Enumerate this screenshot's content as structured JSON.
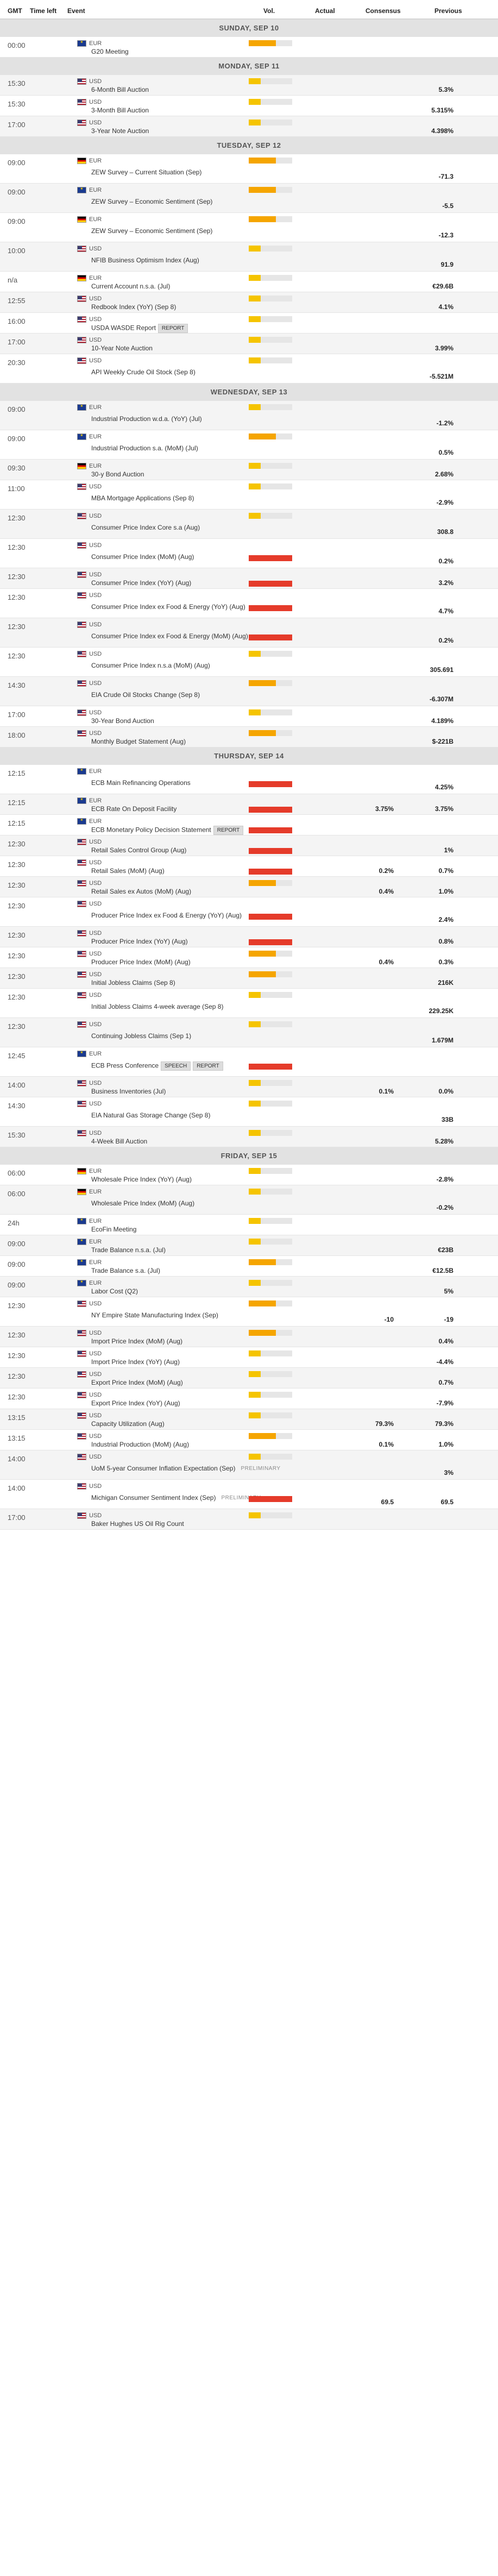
{
  "header": {
    "gmt": "GMT",
    "time_left": "Time left",
    "event": "Event",
    "vol": "Vol.",
    "actual": "Actual",
    "consensus": "Consensus",
    "previous": "Previous"
  },
  "days": [
    {
      "label": "SUNDAY, SEP 10",
      "events": [
        {
          "time": "00:00",
          "currency": "EUR",
          "flag": "eu",
          "name": "G20 Meeting",
          "vol": "med",
          "actual": "",
          "consensus": "",
          "previous": ""
        }
      ]
    },
    {
      "label": "MONDAY, SEP 11",
      "events": [
        {
          "time": "15:30",
          "currency": "USD",
          "flag": "us",
          "name": "6-Month Bill Auction",
          "vol": "low",
          "actual": "",
          "consensus": "",
          "previous": "5.3%"
        },
        {
          "time": "15:30",
          "currency": "USD",
          "flag": "us",
          "name": "3-Month Bill Auction",
          "vol": "low",
          "actual": "",
          "consensus": "",
          "previous": "5.315%"
        },
        {
          "time": "17:00",
          "currency": "USD",
          "flag": "us",
          "name": "3-Year Note Auction",
          "vol": "low",
          "actual": "",
          "consensus": "",
          "previous": "4.398%"
        }
      ]
    },
    {
      "label": "TUESDAY, SEP 12",
      "events": [
        {
          "time": "09:00",
          "currency": "EUR",
          "flag": "de",
          "name": "ZEW Survey – Current Situation (Sep)",
          "vol": "med",
          "actual": "",
          "consensus": "",
          "previous": "-71.3"
        },
        {
          "time": "09:00",
          "currency": "EUR",
          "flag": "eu",
          "name": "ZEW Survey – Economic Sentiment (Sep)",
          "vol": "med",
          "actual": "",
          "consensus": "",
          "previous": "-5.5"
        },
        {
          "time": "09:00",
          "currency": "EUR",
          "flag": "de",
          "name": "ZEW Survey – Economic Sentiment (Sep)",
          "vol": "med",
          "actual": "",
          "consensus": "",
          "previous": "-12.3"
        },
        {
          "time": "10:00",
          "currency": "USD",
          "flag": "us",
          "name": "NFIB Business Optimism Index (Aug)",
          "vol": "low",
          "actual": "",
          "consensus": "",
          "previous": "91.9"
        },
        {
          "time": "n/a",
          "currency": "EUR",
          "flag": "de",
          "name": "Current Account n.s.a. (Jul)",
          "vol": "low",
          "actual": "",
          "consensus": "",
          "previous": "€29.6B"
        },
        {
          "time": "12:55",
          "currency": "USD",
          "flag": "us",
          "name": "Redbook Index (YoY) (Sep 8)",
          "vol": "low",
          "actual": "",
          "consensus": "",
          "previous": "4.1%"
        },
        {
          "time": "16:00",
          "currency": "USD",
          "flag": "us",
          "name": "USDA WASDE Report",
          "tags": [
            "REPORT"
          ],
          "vol": "low",
          "actual": "",
          "consensus": "",
          "previous": ""
        },
        {
          "time": "17:00",
          "currency": "USD",
          "flag": "us",
          "name": "10-Year Note Auction",
          "vol": "low",
          "actual": "",
          "consensus": "",
          "previous": "3.99%"
        },
        {
          "time": "20:30",
          "currency": "USD",
          "flag": "us",
          "name": "API Weekly Crude Oil Stock (Sep 8)",
          "vol": "low",
          "actual": "",
          "consensus": "",
          "previous": "-5.521M"
        }
      ]
    },
    {
      "label": "WEDNESDAY, SEP 13",
      "events": [
        {
          "time": "09:00",
          "currency": "EUR",
          "flag": "eu",
          "name": "Industrial Production w.d.a. (YoY) (Jul)",
          "vol": "low",
          "actual": "",
          "consensus": "",
          "previous": "-1.2%"
        },
        {
          "time": "09:00",
          "currency": "EUR",
          "flag": "eu",
          "name": "Industrial Production s.a. (MoM) (Jul)",
          "vol": "med",
          "actual": "",
          "consensus": "",
          "previous": "0.5%"
        },
        {
          "time": "09:30",
          "currency": "EUR",
          "flag": "de",
          "name": "30-y Bond Auction",
          "vol": "low",
          "actual": "",
          "consensus": "",
          "previous": "2.68%"
        },
        {
          "time": "11:00",
          "currency": "USD",
          "flag": "us",
          "name": "MBA Mortgage Applications (Sep 8)",
          "vol": "low",
          "actual": "",
          "consensus": "",
          "previous": "-2.9%"
        },
        {
          "time": "12:30",
          "currency": "USD",
          "flag": "us",
          "name": "Consumer Price Index Core s.a (Aug)",
          "vol": "low",
          "actual": "",
          "consensus": "",
          "previous": "308.8"
        },
        {
          "time": "12:30",
          "currency": "USD",
          "flag": "us",
          "name": "Consumer Price Index (MoM) (Aug)",
          "vol": "high",
          "actual": "",
          "consensus": "",
          "previous": "0.2%"
        },
        {
          "time": "12:30",
          "currency": "USD",
          "flag": "us",
          "name": "Consumer Price Index (YoY) (Aug)",
          "vol": "high",
          "actual": "",
          "consensus": "",
          "previous": "3.2%"
        },
        {
          "time": "12:30",
          "currency": "USD",
          "flag": "us",
          "name": "Consumer Price Index ex Food & Energy (YoY) (Aug)",
          "vol": "high",
          "actual": "",
          "consensus": "",
          "previous": "4.7%"
        },
        {
          "time": "12:30",
          "currency": "USD",
          "flag": "us",
          "name": "Consumer Price Index ex Food & Energy (MoM) (Aug)",
          "vol": "high",
          "actual": "",
          "consensus": "",
          "previous": "0.2%"
        },
        {
          "time": "12:30",
          "currency": "USD",
          "flag": "us",
          "name": "Consumer Price Index n.s.a (MoM) (Aug)",
          "vol": "low",
          "actual": "",
          "consensus": "",
          "previous": "305.691"
        },
        {
          "time": "14:30",
          "currency": "USD",
          "flag": "us",
          "name": "EIA Crude Oil Stocks Change (Sep 8)",
          "vol": "med",
          "actual": "",
          "consensus": "",
          "previous": "-6.307M"
        },
        {
          "time": "17:00",
          "currency": "USD",
          "flag": "us",
          "name": "30-Year Bond Auction",
          "vol": "low",
          "actual": "",
          "consensus": "",
          "previous": "4.189%"
        },
        {
          "time": "18:00",
          "currency": "USD",
          "flag": "us",
          "name": "Monthly Budget Statement (Aug)",
          "vol": "med",
          "actual": "",
          "consensus": "",
          "previous": "$-221B"
        }
      ]
    },
    {
      "label": "THURSDAY, SEP 14",
      "events": [
        {
          "time": "12:15",
          "currency": "EUR",
          "flag": "eu",
          "name": "ECB Main Refinancing Operations",
          "vol": "high",
          "actual": "",
          "consensus": "",
          "previous": "4.25%"
        },
        {
          "time": "12:15",
          "currency": "EUR",
          "flag": "eu",
          "name": "ECB Rate On Deposit Facility",
          "vol": "high",
          "actual": "",
          "consensus": "3.75%",
          "previous": "3.75%"
        },
        {
          "time": "12:15",
          "currency": "EUR",
          "flag": "eu",
          "name": "ECB Monetary Policy Decision Statement",
          "tags": [
            "REPORT"
          ],
          "vol": "high",
          "actual": "",
          "consensus": "",
          "previous": ""
        },
        {
          "time": "12:30",
          "currency": "USD",
          "flag": "us",
          "name": "Retail Sales Control Group (Aug)",
          "vol": "high",
          "actual": "",
          "consensus": "",
          "previous": "1%"
        },
        {
          "time": "12:30",
          "currency": "USD",
          "flag": "us",
          "name": "Retail Sales (MoM) (Aug)",
          "vol": "high",
          "actual": "",
          "consensus": "0.2%",
          "previous": "0.7%"
        },
        {
          "time": "12:30",
          "currency": "USD",
          "flag": "us",
          "name": "Retail Sales ex Autos (MoM) (Aug)",
          "vol": "med",
          "actual": "",
          "consensus": "0.4%",
          "previous": "1.0%"
        },
        {
          "time": "12:30",
          "currency": "USD",
          "flag": "us",
          "name": "Producer Price Index ex Food & Energy (YoY) (Aug)",
          "vol": "high",
          "actual": "",
          "consensus": "",
          "previous": "2.4%"
        },
        {
          "time": "12:30",
          "currency": "USD",
          "flag": "us",
          "name": "Producer Price Index (YoY) (Aug)",
          "vol": "high",
          "actual": "",
          "consensus": "",
          "previous": "0.8%"
        },
        {
          "time": "12:30",
          "currency": "USD",
          "flag": "us",
          "name": "Producer Price Index (MoM) (Aug)",
          "vol": "med",
          "actual": "",
          "consensus": "0.4%",
          "previous": "0.3%"
        },
        {
          "time": "12:30",
          "currency": "USD",
          "flag": "us",
          "name": "Initial Jobless Claims (Sep 8)",
          "vol": "med",
          "actual": "",
          "consensus": "",
          "previous": "216K"
        },
        {
          "time": "12:30",
          "currency": "USD",
          "flag": "us",
          "name": "Initial Jobless Claims 4-week average (Sep 8)",
          "vol": "low",
          "actual": "",
          "consensus": "",
          "previous": "229.25K"
        },
        {
          "time": "12:30",
          "currency": "USD",
          "flag": "us",
          "name": "Continuing Jobless Claims (Sep 1)",
          "vol": "low",
          "actual": "",
          "consensus": "",
          "previous": "1.679M"
        },
        {
          "time": "12:45",
          "currency": "EUR",
          "flag": "eu",
          "name": "ECB Press Conference",
          "tags": [
            "SPEECH",
            "REPORT"
          ],
          "vol": "high",
          "actual": "",
          "consensus": "",
          "previous": ""
        },
        {
          "time": "14:00",
          "currency": "USD",
          "flag": "us",
          "name": "Business Inventories (Jul)",
          "vol": "low",
          "actual": "",
          "consensus": "0.1%",
          "previous": "0.0%"
        },
        {
          "time": "14:30",
          "currency": "USD",
          "flag": "us",
          "name": "EIA Natural Gas Storage Change (Sep 8)",
          "vol": "low",
          "actual": "",
          "consensus": "",
          "previous": "33B"
        },
        {
          "time": "15:30",
          "currency": "USD",
          "flag": "us",
          "name": "4-Week Bill Auction",
          "vol": "low",
          "actual": "",
          "consensus": "",
          "previous": "5.28%"
        }
      ]
    },
    {
      "label": "FRIDAY, SEP 15",
      "events": [
        {
          "time": "06:00",
          "currency": "EUR",
          "flag": "de",
          "name": "Wholesale Price Index (YoY) (Aug)",
          "vol": "low",
          "actual": "",
          "consensus": "",
          "previous": "-2.8%"
        },
        {
          "time": "06:00",
          "currency": "EUR",
          "flag": "de",
          "name": "Wholesale Price Index (MoM) (Aug)",
          "vol": "low",
          "actual": "",
          "consensus": "",
          "previous": "-0.2%"
        },
        {
          "time": "24h",
          "currency": "EUR",
          "flag": "eu",
          "name": "EcoFin Meeting",
          "vol": "low",
          "actual": "",
          "consensus": "",
          "previous": ""
        },
        {
          "time": "09:00",
          "currency": "EUR",
          "flag": "eu",
          "name": "Trade Balance n.s.a. (Jul)",
          "vol": "low",
          "actual": "",
          "consensus": "",
          "previous": "€23B"
        },
        {
          "time": "09:00",
          "currency": "EUR",
          "flag": "eu",
          "name": "Trade Balance s.a. (Jul)",
          "vol": "med",
          "actual": "",
          "consensus": "",
          "previous": "€12.5B"
        },
        {
          "time": "09:00",
          "currency": "EUR",
          "flag": "eu",
          "name": "Labor Cost (Q2)",
          "vol": "low",
          "actual": "",
          "consensus": "",
          "previous": "5%"
        },
        {
          "time": "12:30",
          "currency": "USD",
          "flag": "us",
          "name": "NY Empire State Manufacturing Index (Sep)",
          "vol": "med",
          "actual": "",
          "consensus": "-10",
          "previous": "-19"
        },
        {
          "time": "12:30",
          "currency": "USD",
          "flag": "us",
          "name": "Import Price Index (MoM) (Aug)",
          "vol": "med",
          "actual": "",
          "consensus": "",
          "previous": "0.4%"
        },
        {
          "time": "12:30",
          "currency": "USD",
          "flag": "us",
          "name": "Import Price Index (YoY) (Aug)",
          "vol": "low",
          "actual": "",
          "consensus": "",
          "previous": "-4.4%"
        },
        {
          "time": "12:30",
          "currency": "USD",
          "flag": "us",
          "name": "Export Price Index (MoM) (Aug)",
          "vol": "low",
          "actual": "",
          "consensus": "",
          "previous": "0.7%"
        },
        {
          "time": "12:30",
          "currency": "USD",
          "flag": "us",
          "name": "Export Price Index (YoY) (Aug)",
          "vol": "low",
          "actual": "",
          "consensus": "",
          "previous": "-7.9%"
        },
        {
          "time": "13:15",
          "currency": "USD",
          "flag": "us",
          "name": "Capacity Utilization (Aug)",
          "vol": "low",
          "actual": "",
          "consensus": "79.3%",
          "previous": "79.3%"
        },
        {
          "time": "13:15",
          "currency": "USD",
          "flag": "us",
          "name": "Industrial Production (MoM) (Aug)",
          "vol": "med",
          "actual": "",
          "consensus": "0.1%",
          "previous": "1.0%"
        },
        {
          "time": "14:00",
          "currency": "USD",
          "flag": "us",
          "name": "UoM 5-year Consumer Inflation Expectation (Sep)",
          "tags": [
            "PRELIMINARY"
          ],
          "vol": "low",
          "actual": "",
          "consensus": "",
          "previous": "3%"
        },
        {
          "time": "14:00",
          "currency": "USD",
          "flag": "us",
          "name": "Michigan Consumer Sentiment Index (Sep)",
          "tags": [
            "PRELIMINARY"
          ],
          "vol": "high",
          "actual": "",
          "consensus": "69.5",
          "previous": "69.5"
        },
        {
          "time": "17:00",
          "currency": "USD",
          "flag": "us",
          "name": "Baker Hughes US Oil Rig Count",
          "vol": "low",
          "actual": "",
          "consensus": "",
          "previous": ""
        }
      ]
    }
  ]
}
